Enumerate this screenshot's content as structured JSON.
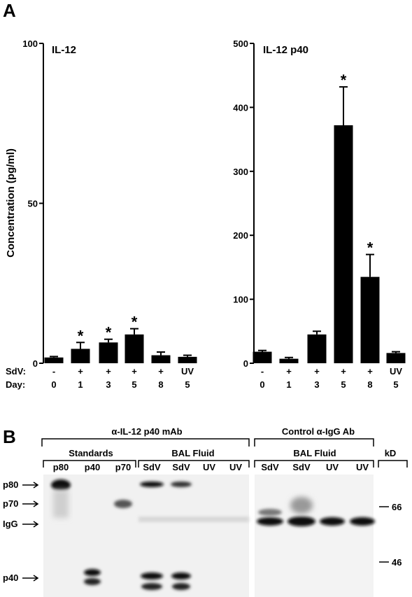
{
  "figure": {
    "panel_a_label": "A",
    "panel_b_label": "B"
  },
  "chart_data": [
    {
      "type": "bar",
      "title": "IL-12",
      "ylabel": "Concentration (pg/ml)",
      "xlabel": "",
      "ylim": [
        0,
        100
      ],
      "yticks": [
        0,
        50,
        100
      ],
      "row_labels": [
        "SdV:",
        "Day:"
      ],
      "categories_sdv": [
        "-",
        "+",
        "+",
        "+",
        "+",
        "UV"
      ],
      "categories_day": [
        "0",
        "1",
        "3",
        "5",
        "8",
        "5"
      ],
      "values": [
        1.8,
        4.5,
        6.5,
        9.0,
        2.5,
        2.0
      ],
      "errors": [
        0.3,
        2.0,
        1.0,
        1.8,
        1.0,
        0.5
      ],
      "significant": [
        false,
        true,
        true,
        true,
        false,
        false
      ],
      "significance_marker": "*"
    },
    {
      "type": "bar",
      "title": "IL-12 p40",
      "ylabel": "",
      "xlabel": "",
      "ylim": [
        0,
        500
      ],
      "yticks": [
        0,
        100,
        200,
        300,
        400,
        500
      ],
      "categories_sdv": [
        "-",
        "+",
        "+",
        "+",
        "+",
        "UV"
      ],
      "categories_day": [
        "0",
        "1",
        "3",
        "5",
        "8",
        "5"
      ],
      "values": [
        18,
        7,
        45,
        372,
        135,
        16
      ],
      "errors": [
        2,
        2,
        5,
        60,
        35,
        2
      ],
      "significant": [
        false,
        false,
        false,
        true,
        true,
        false
      ],
      "significance_marker": "*"
    }
  ],
  "blot": {
    "header_left": "α-IL-12 p40 mAb",
    "header_right": "Control α-IgG Ab",
    "group_standards": "Standards",
    "group_bal_left": "BAL Fluid",
    "group_bal_right": "BAL Fluid",
    "kd_label": "kD",
    "lanes_left": [
      "p80",
      "p40",
      "p70",
      "SdV",
      "SdV",
      "UV",
      "UV"
    ],
    "lanes_right": [
      "SdV",
      "SdV",
      "UV",
      "UV"
    ],
    "row_markers": [
      "p80",
      "p70",
      "IgG",
      "p40"
    ],
    "kd_markers": [
      "66",
      "46"
    ]
  }
}
